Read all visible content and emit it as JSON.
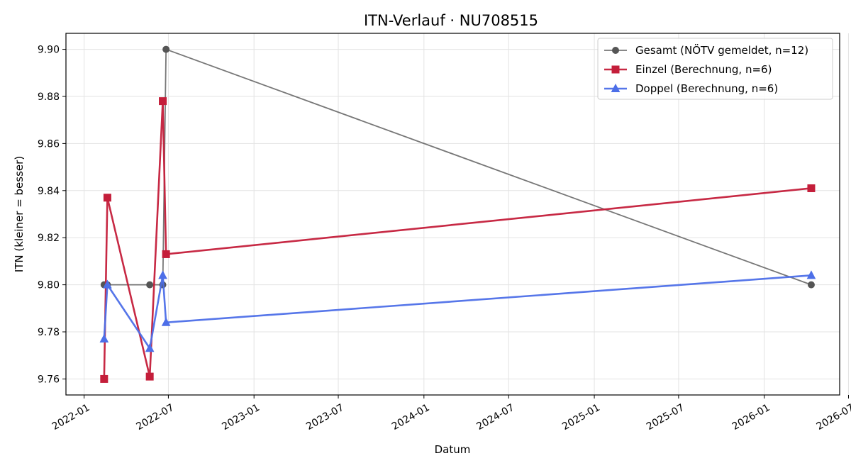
{
  "chart_data": {
    "type": "line",
    "title": "ITN-Verlauf · NU708515",
    "xlabel": "Datum",
    "ylabel": "ITN  (kleiner = besser)",
    "x_type": "date",
    "xlim": [
      "2021-11-23",
      "2026-06-12"
    ],
    "ylim": [
      9.7532,
      9.9068
    ],
    "x_ticks": [
      "2022-01",
      "2022-07",
      "2023-01",
      "2023-07",
      "2024-01",
      "2024-07",
      "2025-01",
      "2025-07",
      "2026-01",
      "2026-07"
    ],
    "y_ticks": [
      "9.76",
      "9.78",
      "9.80",
      "9.82",
      "9.84",
      "9.86",
      "9.88",
      "9.90"
    ],
    "grid": true,
    "legend_position": "upper-right",
    "series": [
      {
        "name": "Gesamt (NÖTV gemeldet, n=12)",
        "color": "#555555",
        "marker": "circle",
        "points": [
          {
            "x": "2022-02-13",
            "y": 9.8
          },
          {
            "x": "2022-02-20",
            "y": 9.8
          },
          {
            "x": "2022-05-22",
            "y": 9.8
          },
          {
            "x": "2022-06-19",
            "y": 9.8
          },
          {
            "x": "2022-06-26",
            "y": 9.9
          },
          {
            "x": "2026-04-12",
            "y": 9.8
          }
        ]
      },
      {
        "name": "Einzel (Berechnung, n=6)",
        "color": "#c41e3a",
        "marker": "square",
        "points": [
          {
            "x": "2022-02-13",
            "y": 9.76
          },
          {
            "x": "2022-02-20",
            "y": 9.837
          },
          {
            "x": "2022-05-22",
            "y": 9.761
          },
          {
            "x": "2022-06-19",
            "y": 9.878
          },
          {
            "x": "2022-06-26",
            "y": 9.813
          },
          {
            "x": "2026-04-12",
            "y": 9.841
          }
        ]
      },
      {
        "name": "Doppel (Berechnung, n=6)",
        "color": "#4d6fe8",
        "marker": "triangle",
        "points": [
          {
            "x": "2022-02-13",
            "y": 9.777
          },
          {
            "x": "2022-02-20",
            "y": 9.8
          },
          {
            "x": "2022-05-22",
            "y": 9.773
          },
          {
            "x": "2022-06-19",
            "y": 9.804
          },
          {
            "x": "2022-06-26",
            "y": 9.784
          },
          {
            "x": "2026-04-12",
            "y": 9.804
          }
        ]
      }
    ]
  }
}
